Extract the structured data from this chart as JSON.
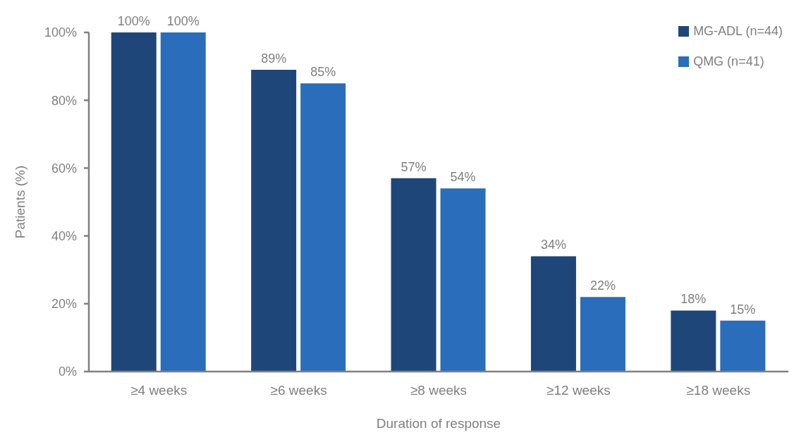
{
  "chart_data": {
    "type": "bar",
    "categories": [
      "≥4 weeks",
      "≥6 weeks",
      "≥8 weeks",
      "≥12 weeks",
      "≥18 weeks"
    ],
    "series": [
      {
        "name": "MG-ADL (n=44)",
        "color": "#1f4678",
        "values": [
          100,
          89,
          57,
          34,
          18
        ],
        "value_labels": [
          "100%",
          "89%",
          "57%",
          "34%",
          "18%"
        ]
      },
      {
        "name": "QMG (n=41)",
        "color": "#2a6dbb",
        "values": [
          100,
          85,
          54,
          22,
          15
        ],
        "value_labels": [
          "100%",
          "85%",
          "54%",
          "22%",
          "15%"
        ]
      }
    ],
    "xlabel": "Duration of response",
    "ylabel": "Patients (%)",
    "ylim": [
      0,
      100
    ],
    "yticks": [
      {
        "value": 0,
        "label": "0%"
      },
      {
        "value": 20,
        "label": "20%"
      },
      {
        "value": 40,
        "label": "40%"
      },
      {
        "value": 60,
        "label": "60%"
      },
      {
        "value": 80,
        "label": "80%"
      },
      {
        "value": 100,
        "label": "100%"
      }
    ],
    "grid": false,
    "legend": "top right"
  }
}
